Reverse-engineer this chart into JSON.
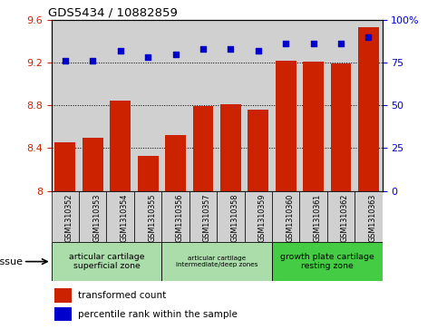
{
  "title": "GDS5434 / 10882859",
  "categories": [
    "GSM1310352",
    "GSM1310353",
    "GSM1310354",
    "GSM1310355",
    "GSM1310356",
    "GSM1310357",
    "GSM1310358",
    "GSM1310359",
    "GSM1310360",
    "GSM1310361",
    "GSM1310362",
    "GSM1310363"
  ],
  "bar_values": [
    8.45,
    8.5,
    8.84,
    8.33,
    8.52,
    8.79,
    8.81,
    8.76,
    9.22,
    9.21,
    9.19,
    9.53
  ],
  "scatter_values": [
    76,
    76,
    82,
    78,
    80,
    83,
    83,
    82,
    86,
    86,
    86,
    90
  ],
  "bar_color": "#cc2200",
  "scatter_color": "#0000cc",
  "ylim_left": [
    8.0,
    9.6
  ],
  "ylim_right": [
    0,
    100
  ],
  "yticks_left": [
    8.0,
    8.4,
    8.8,
    9.2,
    9.6
  ],
  "yticks_right": [
    0,
    25,
    50,
    75,
    100
  ],
  "grid_values": [
    8.4,
    8.8,
    9.2
  ],
  "tissue_groups": [
    {
      "label": "articular cartilage\nsuperficial zone",
      "start": 0,
      "end": 4,
      "color": "#aaddaa",
      "fontsize": 9
    },
    {
      "label": "articular cartilage\nintermediate/deep zones",
      "start": 4,
      "end": 8,
      "color": "#aaddaa",
      "fontsize": 7
    },
    {
      "label": "growth plate cartilage\nresting zone",
      "start": 8,
      "end": 12,
      "color": "#44cc44",
      "fontsize": 9
    }
  ],
  "tissue_label": "tissue",
  "legend_bar_label": "transformed count",
  "legend_scatter_label": "percentile rank within the sample",
  "col_bg_color": "#d0d0d0",
  "white_bg": "#ffffff"
}
